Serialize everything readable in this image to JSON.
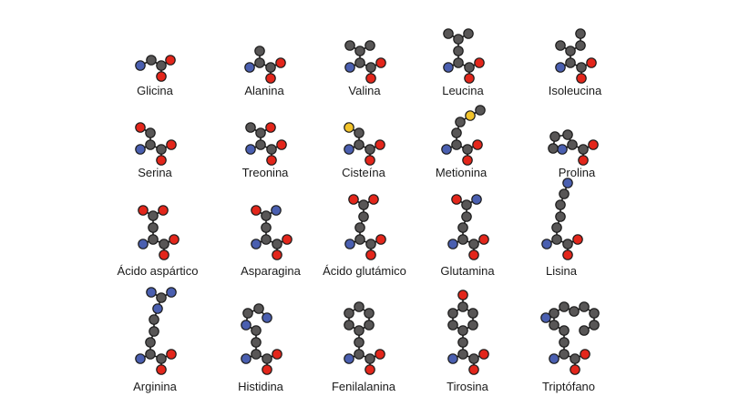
{
  "colors": {
    "carbon": "#585656",
    "nitrogen": "#4a5fb0",
    "oxygen": "#e3261b",
    "sulfur": "#f2c32a",
    "bond": "#1a1a1a",
    "outline": "#1a1a1a",
    "text": "#1a1a1a",
    "background": "#ffffff"
  },
  "amino_acids": [
    {
      "name": "Glicina",
      "atoms": [
        [
          "N",
          -18,
          0
        ],
        [
          "C",
          -6,
          -6
        ],
        [
          "C",
          5,
          0
        ],
        [
          "O",
          15,
          -6
        ],
        [
          "O",
          5,
          12
        ]
      ]
    },
    {
      "name": "Alanina",
      "atoms": [
        [
          "N",
          -18,
          6
        ],
        [
          "C",
          -7,
          1
        ],
        [
          "C",
          -7,
          -12
        ],
        [
          "C",
          5,
          6
        ],
        [
          "O",
          16,
          1
        ],
        [
          "O",
          5,
          18
        ]
      ]
    },
    {
      "name": "Valina",
      "atoms": [
        [
          "N",
          -18,
          6
        ],
        [
          "C",
          -7,
          1
        ],
        [
          "C",
          -7,
          -12
        ],
        [
          "C",
          -18,
          -18
        ],
        [
          "C",
          4,
          -18
        ],
        [
          "C",
          5,
          6
        ],
        [
          "O",
          16,
          1
        ],
        [
          "O",
          5,
          18
        ]
      ]
    },
    {
      "name": "Leucina",
      "atoms": [
        [
          "N",
          -18,
          6
        ],
        [
          "C",
          -7,
          1
        ],
        [
          "C",
          -7,
          -12
        ],
        [
          "C",
          -7,
          -25
        ],
        [
          "C",
          -18,
          -31
        ],
        [
          "C",
          4,
          -31
        ],
        [
          "C",
          5,
          6
        ],
        [
          "O",
          16,
          1
        ],
        [
          "O",
          5,
          18
        ]
      ]
    },
    {
      "name": "Isoleucina",
      "atoms": [
        [
          "N",
          -18,
          6
        ],
        [
          "C",
          -7,
          1
        ],
        [
          "C",
          -7,
          -12
        ],
        [
          "C",
          -18,
          -18
        ],
        [
          "C",
          4,
          -18
        ],
        [
          "C",
          4,
          -31
        ],
        [
          "C",
          5,
          6
        ],
        [
          "O",
          16,
          1
        ],
        [
          "O",
          5,
          18
        ]
      ]
    },
    {
      "name": "Serina",
      "atoms": [
        [
          "N",
          -18,
          6
        ],
        [
          "C",
          -7,
          1
        ],
        [
          "C",
          -7,
          -12
        ],
        [
          "O",
          -18,
          -18
        ],
        [
          "C",
          5,
          6
        ],
        [
          "O",
          16,
          1
        ],
        [
          "O",
          5,
          18
        ]
      ]
    },
    {
      "name": "Treonina",
      "atoms": [
        [
          "N",
          -18,
          6
        ],
        [
          "C",
          -7,
          1
        ],
        [
          "C",
          -7,
          -12
        ],
        [
          "C",
          -18,
          -18
        ],
        [
          "O",
          4,
          -18
        ],
        [
          "C",
          5,
          6
        ],
        [
          "O",
          16,
          1
        ],
        [
          "O",
          5,
          18
        ]
      ]
    },
    {
      "name": "Cisteína",
      "atoms": [
        [
          "N",
          -18,
          6
        ],
        [
          "C",
          -7,
          1
        ],
        [
          "C",
          -7,
          -12
        ],
        [
          "S",
          -18,
          -18
        ],
        [
          "C",
          5,
          6
        ],
        [
          "O",
          16,
          1
        ],
        [
          "O",
          5,
          18
        ]
      ]
    },
    {
      "name": "Metionina",
      "atoms": [
        [
          "N",
          -18,
          6
        ],
        [
          "C",
          -7,
          1
        ],
        [
          "C",
          -7,
          -12
        ],
        [
          "C",
          -3,
          -24
        ],
        [
          "S",
          8,
          -31
        ],
        [
          "C",
          19,
          -37
        ],
        [
          "C",
          5,
          6
        ],
        [
          "O",
          16,
          1
        ],
        [
          "O",
          5,
          18
        ]
      ]
    },
    {
      "name": "Prolina",
      "atoms": [
        [
          "N",
          -18,
          6
        ],
        [
          "C",
          -7,
          1
        ],
        [
          "C",
          -12,
          -10
        ],
        [
          "C",
          -26,
          -8
        ],
        [
          "C",
          -28,
          5
        ],
        [
          "C",
          5,
          6
        ],
        [
          "O",
          16,
          1
        ],
        [
          "O",
          5,
          18
        ]
      ]
    },
    {
      "name": "Ácido aspártico",
      "atoms": [
        [
          "N",
          -18,
          6
        ],
        [
          "C",
          -7,
          1
        ],
        [
          "C",
          -7,
          -12
        ],
        [
          "C",
          -7,
          -25
        ],
        [
          "O",
          -18,
          -31
        ],
        [
          "O",
          4,
          -31
        ],
        [
          "C",
          5,
          6
        ],
        [
          "O",
          16,
          1
        ],
        [
          "O",
          5,
          18
        ]
      ]
    },
    {
      "name": "Asparagina",
      "atoms": [
        [
          "N",
          -18,
          6
        ],
        [
          "C",
          -7,
          1
        ],
        [
          "C",
          -7,
          -12
        ],
        [
          "C",
          -7,
          -25
        ],
        [
          "O",
          -18,
          -31
        ],
        [
          "N",
          4,
          -31
        ],
        [
          "C",
          5,
          6
        ],
        [
          "O",
          16,
          1
        ],
        [
          "O",
          5,
          18
        ]
      ]
    },
    {
      "name": "Ácido glutámico",
      "atoms": [
        [
          "N",
          -18,
          6
        ],
        [
          "C",
          -7,
          1
        ],
        [
          "C",
          -7,
          -12
        ],
        [
          "C",
          -3,
          -24
        ],
        [
          "C",
          -3,
          -37
        ],
        [
          "O",
          -14,
          -43
        ],
        [
          "O",
          8,
          -43
        ],
        [
          "C",
          5,
          6
        ],
        [
          "O",
          16,
          1
        ],
        [
          "O",
          5,
          18
        ]
      ]
    },
    {
      "name": "Glutamina",
      "atoms": [
        [
          "N",
          -18,
          6
        ],
        [
          "C",
          -7,
          1
        ],
        [
          "C",
          -7,
          -12
        ],
        [
          "C",
          -3,
          -24
        ],
        [
          "C",
          -3,
          -37
        ],
        [
          "O",
          -14,
          -43
        ],
        [
          "N",
          8,
          -43
        ],
        [
          "C",
          5,
          6
        ],
        [
          "O",
          16,
          1
        ],
        [
          "O",
          5,
          18
        ]
      ]
    },
    {
      "name": "Lisina",
      "atoms": [
        [
          "N",
          -18,
          6
        ],
        [
          "C",
          -7,
          1
        ],
        [
          "C",
          -7,
          -12
        ],
        [
          "C",
          -3,
          -24
        ],
        [
          "C",
          -3,
          -37
        ],
        [
          "C",
          1,
          -49
        ],
        [
          "N",
          5,
          -61
        ],
        [
          "C",
          5,
          6
        ],
        [
          "O",
          16,
          1
        ],
        [
          "O",
          5,
          18
        ]
      ]
    },
    {
      "name": "Arginina",
      "atoms": [
        [
          "N",
          -18,
          6
        ],
        [
          "C",
          -7,
          1
        ],
        [
          "C",
          -7,
          -12
        ],
        [
          "C",
          -3,
          -24
        ],
        [
          "C",
          -3,
          -37
        ],
        [
          "N",
          1,
          -49
        ],
        [
          "C",
          5,
          -61
        ],
        [
          "N",
          -6,
          -67
        ],
        [
          "N",
          16,
          -67
        ],
        [
          "C",
          5,
          6
        ],
        [
          "O",
          16,
          1
        ],
        [
          "O",
          5,
          18
        ]
      ]
    },
    {
      "name": "Histidina",
      "atoms": [
        [
          "N",
          -18,
          6
        ],
        [
          "C",
          -7,
          1
        ],
        [
          "C",
          -7,
          -12
        ],
        [
          "C",
          -7,
          -25
        ],
        [
          "N",
          -18,
          -31
        ],
        [
          "C",
          -16,
          -44
        ],
        [
          "C",
          -4,
          -49
        ],
        [
          "N",
          5,
          -39
        ],
        [
          "C",
          5,
          6
        ],
        [
          "O",
          16,
          1
        ],
        [
          "O",
          5,
          18
        ]
      ]
    },
    {
      "name": "Fenilalanina",
      "atoms": [
        [
          "N",
          -18,
          6
        ],
        [
          "C",
          -7,
          1
        ],
        [
          "C",
          -7,
          -12
        ],
        [
          "C",
          -7,
          -25
        ],
        [
          "C",
          -18,
          -31
        ],
        [
          "C",
          -18,
          -44
        ],
        [
          "C",
          -7,
          -51
        ],
        [
          "C",
          4,
          -44
        ],
        [
          "C",
          4,
          -31
        ],
        [
          "C",
          5,
          6
        ],
        [
          "O",
          16,
          1
        ],
        [
          "O",
          5,
          18
        ]
      ]
    },
    {
      "name": "Tirosina",
      "atoms": [
        [
          "N",
          -18,
          6
        ],
        [
          "C",
          -7,
          1
        ],
        [
          "C",
          -7,
          -12
        ],
        [
          "C",
          -7,
          -25
        ],
        [
          "C",
          -18,
          -31
        ],
        [
          "C",
          -18,
          -44
        ],
        [
          "C",
          -7,
          -51
        ],
        [
          "C",
          4,
          -44
        ],
        [
          "C",
          4,
          -31
        ],
        [
          "O",
          -7,
          -64
        ],
        [
          "C",
          5,
          6
        ],
        [
          "O",
          16,
          1
        ],
        [
          "O",
          5,
          18
        ]
      ]
    },
    {
      "name": "Triptófano",
      "atoms": [
        [
          "N",
          -18,
          6
        ],
        [
          "C",
          -7,
          1
        ],
        [
          "C",
          -7,
          -12
        ],
        [
          "C",
          -7,
          -25
        ],
        [
          "C",
          -18,
          -31
        ],
        [
          "C",
          -18,
          -44
        ],
        [
          "N",
          -27,
          -39
        ],
        [
          "C",
          -7,
          -51
        ],
        [
          "C",
          4,
          -46
        ],
        [
          "C",
          15,
          -51
        ],
        [
          "C",
          26,
          -44
        ],
        [
          "C",
          26,
          -31
        ],
        [
          "C",
          15,
          -25
        ],
        [
          "C",
          5,
          6
        ],
        [
          "O",
          16,
          1
        ],
        [
          "O",
          5,
          18
        ]
      ]
    }
  ]
}
